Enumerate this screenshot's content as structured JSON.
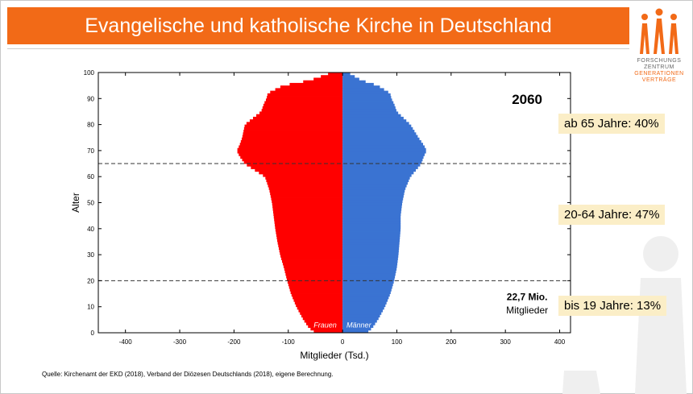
{
  "slide": {
    "title": "Evangelische und katholische Kirche in Deutschland",
    "source": "Quelle: Kirchenamt der EKD (2018), Verband der Diözesen Deutschlands (2018), eigene Berechnung.",
    "logo": {
      "line1": "FORSCHUNGS",
      "line2": "ZENTRUM",
      "line3": "GENERATIONEN",
      "line4": "VERTRÄGE"
    },
    "badges": {
      "old": "ab 65 Jahre: 40%",
      "mid": "20-64 Jahre: 47%",
      "young": "bis 19 Jahre: 13%"
    },
    "colors": {
      "title_bg": "#f26a17",
      "women": "#ff0000",
      "men": "#3a73d2",
      "badge_bg": "#fbeec7"
    }
  },
  "chart_data": {
    "type": "population-pyramid",
    "year_label": "2060",
    "total_value": "22,7 Mio.",
    "total_label": "Mitglieder",
    "xlabel": "Mitglieder (Tsd.)",
    "ylabel": "Alter",
    "series": [
      {
        "name": "Frauen",
        "color": "#ff0000",
        "side": "left"
      },
      {
        "name": "Männer",
        "color": "#3a73d2",
        "side": "right"
      }
    ],
    "xlim": [
      -450,
      420
    ],
    "ylim": [
      0,
      100
    ],
    "xticks": [
      -400,
      -300,
      -200,
      -100,
      0,
      100,
      200,
      300,
      400
    ],
    "xtick_labels": [
      "-400",
      "-300",
      "-200",
      "-100",
      "0",
      "100",
      "200",
      "300",
      "400"
    ],
    "yticks": [
      0,
      10,
      20,
      30,
      40,
      50,
      60,
      70,
      80,
      90,
      100
    ],
    "yticks_labels": [
      "0",
      "10",
      "20",
      "30",
      "40",
      "50",
      "60",
      "70",
      "80",
      "90",
      "100"
    ],
    "reference_lines": [
      65,
      20
    ],
    "profile": {
      "ages": [
        0,
        2,
        5,
        10,
        15,
        20,
        25,
        30,
        35,
        40,
        45,
        50,
        55,
        60,
        65,
        68,
        70,
        72,
        75,
        80,
        85,
        88,
        90,
        92,
        95,
        97,
        100
      ],
      "women": [
        -50,
        -62,
        -72,
        -85,
        -95,
        -102,
        -108,
        -115,
        -120,
        -124,
        -127,
        -130,
        -135,
        -143,
        -180,
        -190,
        -195,
        -190,
        -185,
        -180,
        -150,
        -145,
        -140,
        -138,
        -110,
        -60,
        -20
      ],
      "men": [
        45,
        55,
        65,
        78,
        88,
        95,
        100,
        103,
        105,
        107,
        107,
        110,
        115,
        125,
        145,
        150,
        155,
        150,
        140,
        125,
        100,
        95,
        90,
        88,
        65,
        35,
        10
      ]
    }
  }
}
